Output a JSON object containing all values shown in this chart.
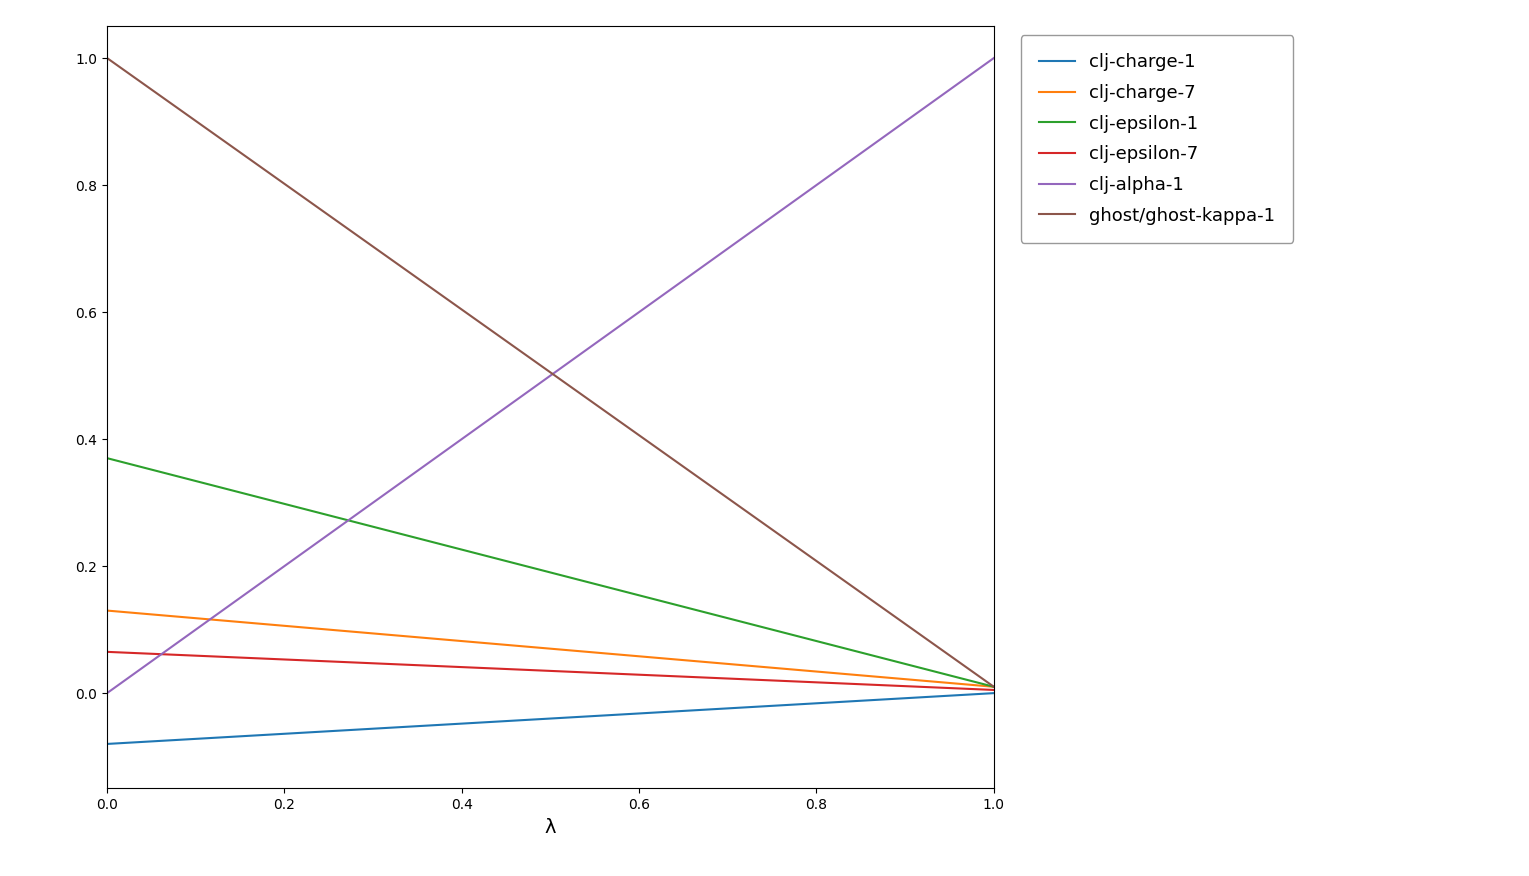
{
  "series": [
    {
      "label": "clj-charge-1",
      "color": "#1f77b4",
      "x": [
        0.0,
        1.0
      ],
      "y": [
        -0.08,
        0.0
      ]
    },
    {
      "label": "clj-charge-7",
      "color": "#ff7f0e",
      "x": [
        0.0,
        1.0
      ],
      "y": [
        0.13,
        0.01
      ]
    },
    {
      "label": "clj-epsilon-1",
      "color": "#2ca02c",
      "x": [
        0.0,
        1.0
      ],
      "y": [
        0.37,
        0.01
      ]
    },
    {
      "label": "clj-epsilon-7",
      "color": "#d62728",
      "x": [
        0.0,
        1.0
      ],
      "y": [
        0.065,
        0.005
      ]
    },
    {
      "label": "clj-alpha-1",
      "color": "#9467bd",
      "x": [
        0.0,
        1.0
      ],
      "y": [
        0.0,
        1.0
      ]
    },
    {
      "label": "ghost/ghost-kappa-1",
      "color": "#8c564b",
      "x": [
        0.0,
        1.0
      ],
      "y": [
        1.0,
        0.01
      ]
    }
  ],
  "xlabel": "λ",
  "ylabel": "",
  "xlim": [
    0.0,
    1.0
  ],
  "ylim": [
    -0.15,
    1.05
  ],
  "figsize": [
    15.29,
    8.76
  ],
  "dpi": 100,
  "xlabel_fontsize": 14,
  "linewidth": 1.5,
  "legend_fontsize": 13,
  "legend_borderpad": 1.0,
  "legend_labelspacing": 0.7
}
